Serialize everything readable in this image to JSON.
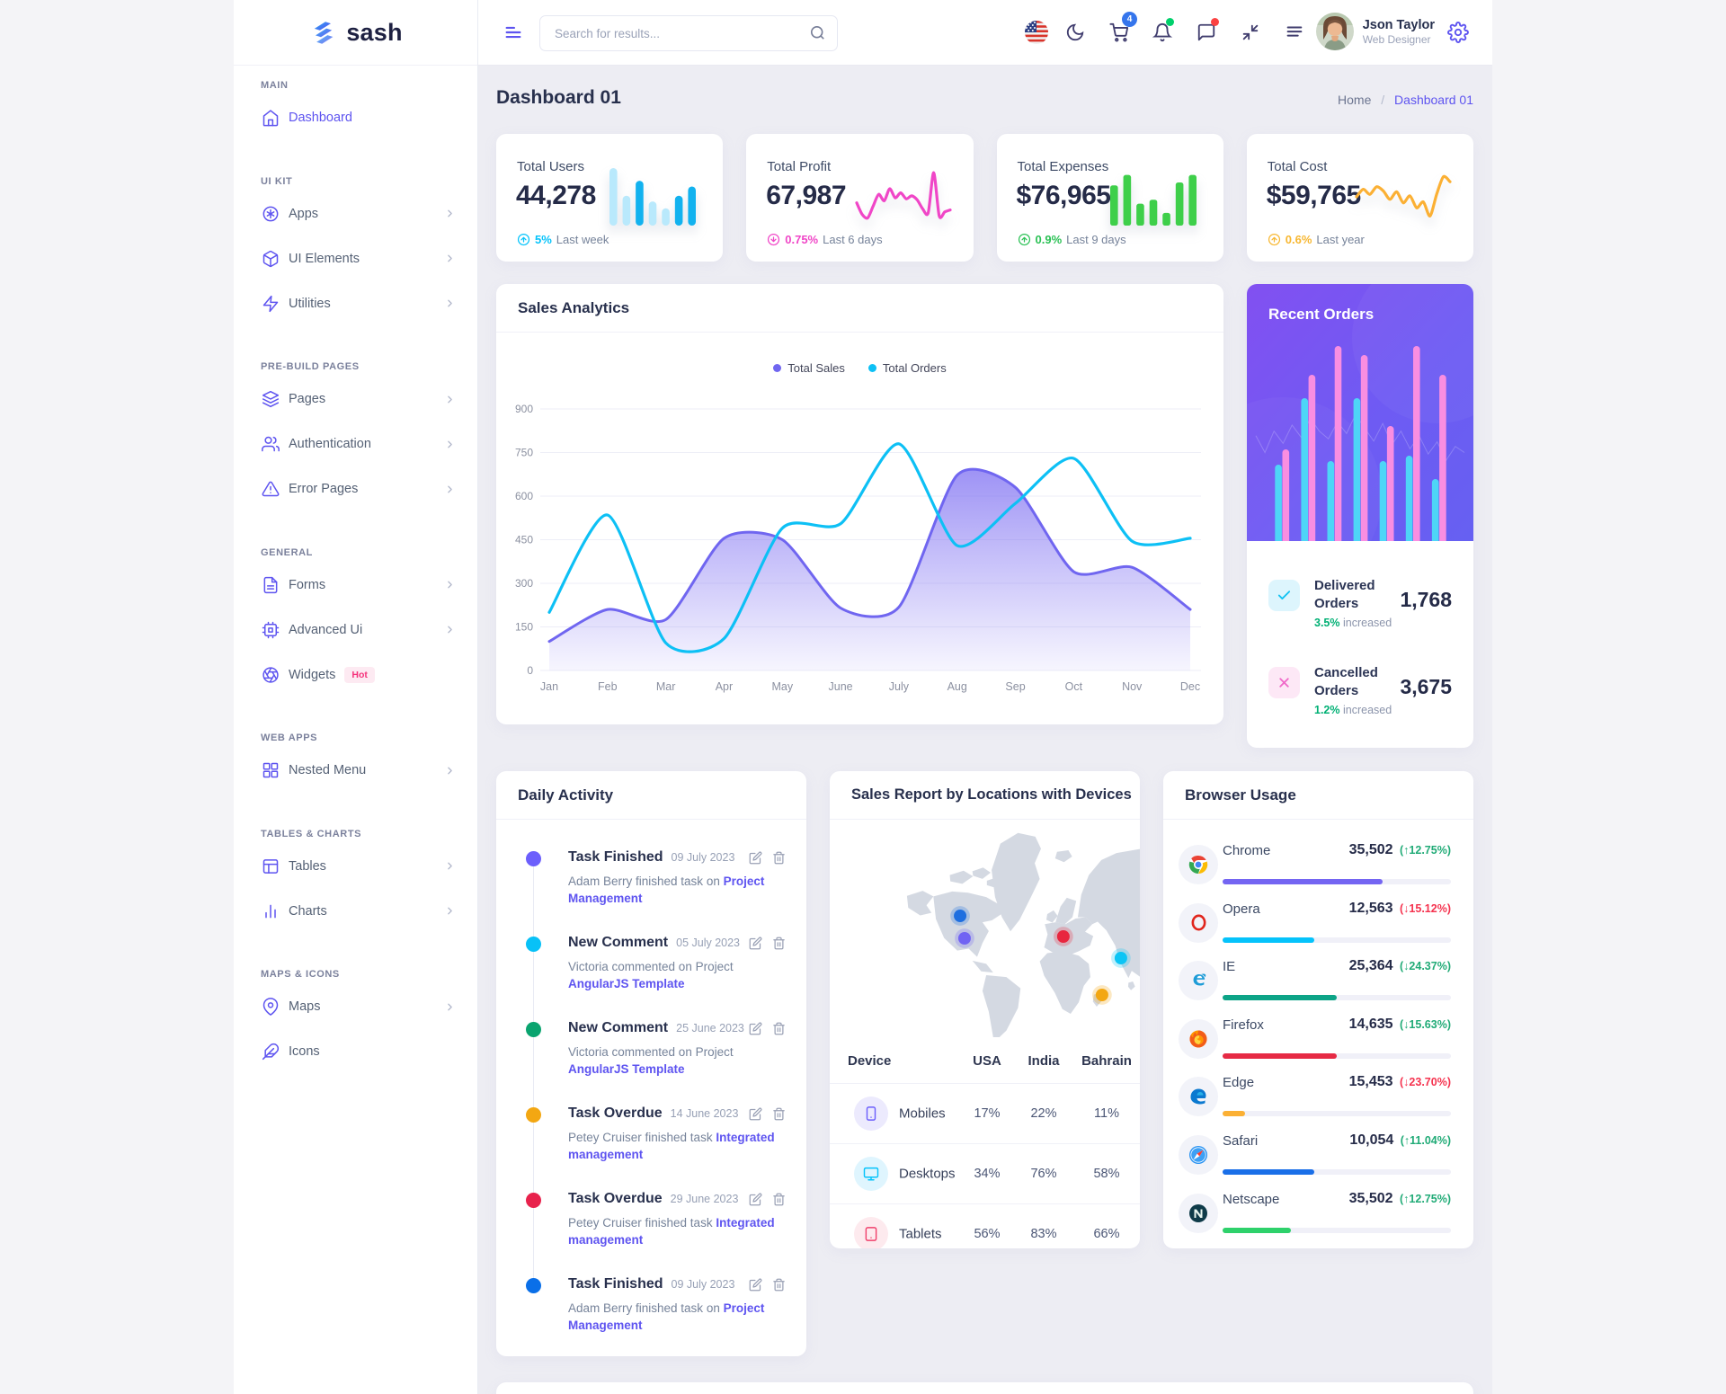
{
  "brand": {
    "name": "sash"
  },
  "sidebar": {
    "sections": [
      {
        "label": "MAIN",
        "items": [
          {
            "id": "dashboard",
            "icon": "home",
            "label": "Dashboard",
            "active": true,
            "chevron": false
          }
        ]
      },
      {
        "label": "UI KIT",
        "items": [
          {
            "id": "apps",
            "icon": "apps",
            "label": "Apps",
            "chevron": true
          },
          {
            "id": "ui-elements",
            "icon": "package",
            "label": "UI Elements",
            "chevron": true
          },
          {
            "id": "utilities",
            "icon": "zap",
            "label": "Utilities",
            "chevron": true
          }
        ]
      },
      {
        "label": "PRE-BUILD PAGES",
        "items": [
          {
            "id": "pages",
            "icon": "layers",
            "label": "Pages",
            "chevron": true
          },
          {
            "id": "authentication",
            "icon": "users",
            "label": "Authentication",
            "chevron": true
          },
          {
            "id": "error-pages",
            "icon": "alert-triangle",
            "label": "Error Pages",
            "chevron": true
          }
        ]
      },
      {
        "label": "GENERAL",
        "items": [
          {
            "id": "forms",
            "icon": "file-text",
            "label": "Forms",
            "chevron": true
          },
          {
            "id": "advanced-ui",
            "icon": "cpu",
            "label": "Advanced Ui",
            "chevron": true
          },
          {
            "id": "widgets",
            "icon": "aperture",
            "label": "Widgets",
            "chevron": false,
            "badge": "Hot"
          }
        ]
      },
      {
        "label": "WEB APPS",
        "items": [
          {
            "id": "nested-menu",
            "icon": "grid",
            "label": "Nested Menu",
            "chevron": true
          }
        ]
      },
      {
        "label": "TABLES & CHARTS",
        "items": [
          {
            "id": "tables",
            "icon": "table",
            "label": "Tables",
            "chevron": true
          },
          {
            "id": "charts",
            "icon": "bar-chart",
            "label": "Charts",
            "chevron": true
          }
        ]
      },
      {
        "label": "MAPS & ICONS",
        "items": [
          {
            "id": "maps",
            "icon": "map-pin",
            "label": "Maps",
            "chevron": true
          },
          {
            "id": "icons",
            "icon": "feather",
            "label": "Icons",
            "chevron": false
          }
        ]
      }
    ]
  },
  "header": {
    "search_placeholder": "Search for results...",
    "cart_badge": "4",
    "user_name": "Json Taylor",
    "user_role": "Web Designer"
  },
  "page": {
    "title": "Dashboard 01",
    "breadcrumb_home": "Home",
    "breadcrumb_current": "Dashboard 01"
  },
  "stats": [
    {
      "title": "Total Users",
      "value": "44,278",
      "direction": "up",
      "change": "5%",
      "period": "Last week",
      "accent": "#05c3fb",
      "spark": "users-spark"
    },
    {
      "title": "Total Profit",
      "value": "67,987",
      "direction": "down",
      "change": "0.75%",
      "period": "Last 6 days",
      "accent": "#f046c7",
      "spark": "profit-spark"
    },
    {
      "title": "Total Expenses",
      "value": "$76,965",
      "direction": "up",
      "change": "0.9%",
      "period": "Last 9 days",
      "accent": "#2bc155",
      "spark": "expenses-spark"
    },
    {
      "title": "Total Cost",
      "value": "$59,765",
      "direction": "up",
      "change": "0.6%",
      "period": "Last year",
      "accent": "#f7b731",
      "spark": "cost-spark"
    }
  ],
  "sales_analytics": {
    "title": "Sales Analytics"
  },
  "recent_orders": {
    "title": "Recent Orders",
    "rows": [
      {
        "icon": "check",
        "label": "Delivered Orders",
        "change": "3.5%",
        "change_suffix": " increased",
        "value": "1,768",
        "icon_color": "#12c2f2",
        "icon_bg": "#ddf5fd"
      },
      {
        "icon": "x",
        "label": "Cancelled Orders",
        "change": "1.2%",
        "change_suffix": " increased",
        "value": "3,675",
        "icon_color": "#f06ac9",
        "icon_bg": "#fde8f6"
      }
    ]
  },
  "daily_activity": {
    "title": "Daily Activity",
    "items": [
      {
        "dot": "#6c5ffc",
        "title": "Task Finished",
        "date": "09 July 2023",
        "text": "Adam Berry finished task on ",
        "link": "Project Management"
      },
      {
        "dot": "#08c1f7",
        "title": "New Comment",
        "date": "05 July 2023",
        "text": "Victoria commented on Project ",
        "link": "AngularJS Template"
      },
      {
        "dot": "#0aa46f",
        "title": "New Comment",
        "date": "25 June 2023",
        "text": "Victoria commented on Project ",
        "link": "AngularJS Template"
      },
      {
        "dot": "#f3a712",
        "title": "Task Overdue",
        "date": "14 June 2023",
        "text": "Petey Cruiser finished task ",
        "link": "Integrated management"
      },
      {
        "dot": "#e8224c",
        "title": "Task Overdue",
        "date": "29 June 2023",
        "text": "Petey Cruiser finished task ",
        "link": "Integrated management"
      },
      {
        "dot": "#0a6fe8",
        "title": "Task Finished",
        "date": "09 July 2023",
        "text": "Adam Berry finished task on ",
        "link": "Project Management"
      }
    ]
  },
  "sales_report": {
    "title": "Sales Report by Locations with Devices",
    "columns": [
      "Device",
      "USA",
      "India",
      "Bahrain"
    ],
    "rows": [
      {
        "icon": "smartphone",
        "name": "Mobiles",
        "usa": "17%",
        "india": "22%",
        "bahrain": "11%",
        "icon_color": "#6c5ffc",
        "icon_bg": "#eceafd"
      },
      {
        "icon": "monitor",
        "name": "Desktops",
        "usa": "34%",
        "india": "76%",
        "bahrain": "58%",
        "icon_color": "#05c3fb",
        "icon_bg": "#dff5fe"
      },
      {
        "icon": "tablet",
        "name": "Tablets",
        "usa": "56%",
        "india": "83%",
        "bahrain": "66%",
        "icon_color": "#f0416c",
        "icon_bg": "#fdeaee"
      }
    ],
    "markers": [
      {
        "x": 42.3,
        "y": 45.6,
        "color": "#1f6fe0",
        "name": "marker-usa-north"
      },
      {
        "x": 43.7,
        "y": 55.6,
        "color": "#7163f3",
        "name": "marker-usa-south"
      },
      {
        "x": 75.1,
        "y": 54.8,
        "color": "#e8263f",
        "name": "marker-europe"
      },
      {
        "x": 93.4,
        "y": 64.4,
        "color": "#0cc5f5",
        "name": "marker-india"
      },
      {
        "x": 87.4,
        "y": 80.8,
        "color": "#f3a712",
        "name": "marker-bahrain"
      }
    ]
  },
  "browser_usage": {
    "title": "Browser Usage",
    "rows": [
      {
        "icon": "chrome",
        "name": "Chrome",
        "value": "35,502",
        "arrow": "up",
        "change": "12.75%",
        "change_tone": "green",
        "bar_color": "#7465f2",
        "bar_pct": 70
      },
      {
        "icon": "opera",
        "name": "Opera",
        "value": "12,563",
        "arrow": "down",
        "change": "15.12%",
        "change_tone": "red",
        "bar_color": "#05c3fb",
        "bar_pct": 40
      },
      {
        "icon": "ie",
        "name": "IE",
        "value": "25,364",
        "arrow": "down",
        "change": "24.37%",
        "change_tone": "green",
        "bar_color": "#0da487",
        "bar_pct": 50
      },
      {
        "icon": "firefox",
        "name": "Firefox",
        "value": "14,635",
        "arrow": "down",
        "change": "15.63%",
        "change_tone": "green",
        "bar_color": "#e62a45",
        "bar_pct": 50
      },
      {
        "icon": "edge",
        "name": "Edge",
        "value": "15,453",
        "arrow": "down",
        "change": "23.70%",
        "change_tone": "red",
        "bar_color": "#fbb034",
        "bar_pct": 10
      },
      {
        "icon": "safari",
        "name": "Safari",
        "value": "10,054",
        "arrow": "up",
        "change": "11.04%",
        "change_tone": "green",
        "bar_color": "#1a6fe8",
        "bar_pct": 40
      },
      {
        "icon": "netscape",
        "name": "Netscape",
        "value": "35,502",
        "arrow": "up",
        "change": "12.75%",
        "change_tone": "green",
        "bar_color": "#2ed16b",
        "bar_pct": 30
      }
    ]
  },
  "chart_data": [
    {
      "id": "users-spark",
      "type": "bar",
      "values": [
        100,
        52,
        78,
        42,
        30,
        52,
        68
      ],
      "tones": [
        "light",
        "light",
        "dark",
        "light",
        "light",
        "dark",
        "dark"
      ],
      "color_light": "#b9e9fc",
      "color_dark": "#12b2ef"
    },
    {
      "id": "profit-spark",
      "type": "line",
      "color": "#f046c7",
      "values": [
        38,
        15,
        8,
        32,
        55,
        42,
        66,
        48,
        58,
        46,
        52,
        44,
        26,
        18,
        98,
        12,
        20,
        24
      ]
    },
    {
      "id": "expenses-spark",
      "type": "bar",
      "color": "#3ecf4a",
      "values": [
        70,
        88,
        38,
        45,
        22,
        75,
        88
      ]
    },
    {
      "id": "cost-spark",
      "type": "line",
      "color": "#fbb034",
      "values": [
        50,
        65,
        55,
        70,
        62,
        45,
        60,
        38,
        52,
        28,
        40,
        12,
        55,
        90,
        80
      ]
    },
    {
      "id": "sales-analytics",
      "type": "area-line",
      "title": "Sales Analytics",
      "categories": [
        "Jan",
        "Feb",
        "Mar",
        "Apr",
        "May",
        "June",
        "July",
        "Aug",
        "Sep",
        "Oct",
        "Nov",
        "Dec"
      ],
      "series": [
        {
          "name": "Total Sales",
          "type": "area",
          "color": "#7066f0",
          "values": [
            100,
            210,
            175,
            455,
            450,
            215,
            218,
            672,
            630,
            340,
            355,
            210
          ]
        },
        {
          "name": "Total Orders",
          "type": "line",
          "color": "#0dc0f5",
          "values": [
            200,
            535,
            95,
            110,
            490,
            505,
            780,
            430,
            575,
            730,
            445,
            455
          ]
        }
      ],
      "ylim": [
        0,
        900
      ],
      "yticks": [
        900,
        750,
        600,
        450,
        300,
        150,
        0
      ],
      "grid": "horizontal",
      "legend_position": "top"
    },
    {
      "id": "recent-orders-bars",
      "type": "bar-pairs",
      "series": [
        {
          "name": "cyan",
          "color": "#4ed5f7",
          "values": [
            85,
            159,
            89,
            159,
            89,
            95,
            69
          ]
        },
        {
          "name": "pink",
          "color": "#f98ee1",
          "values": [
            102,
            185,
            217,
            207,
            128,
            217,
            185
          ]
        }
      ],
      "deco_line": [
        52,
        30,
        58,
        42,
        66,
        50,
        75,
        58,
        48,
        70,
        55,
        80,
        62,
        45,
        68,
        40,
        58,
        35,
        52,
        28,
        44,
        20,
        38,
        30
      ]
    }
  ]
}
